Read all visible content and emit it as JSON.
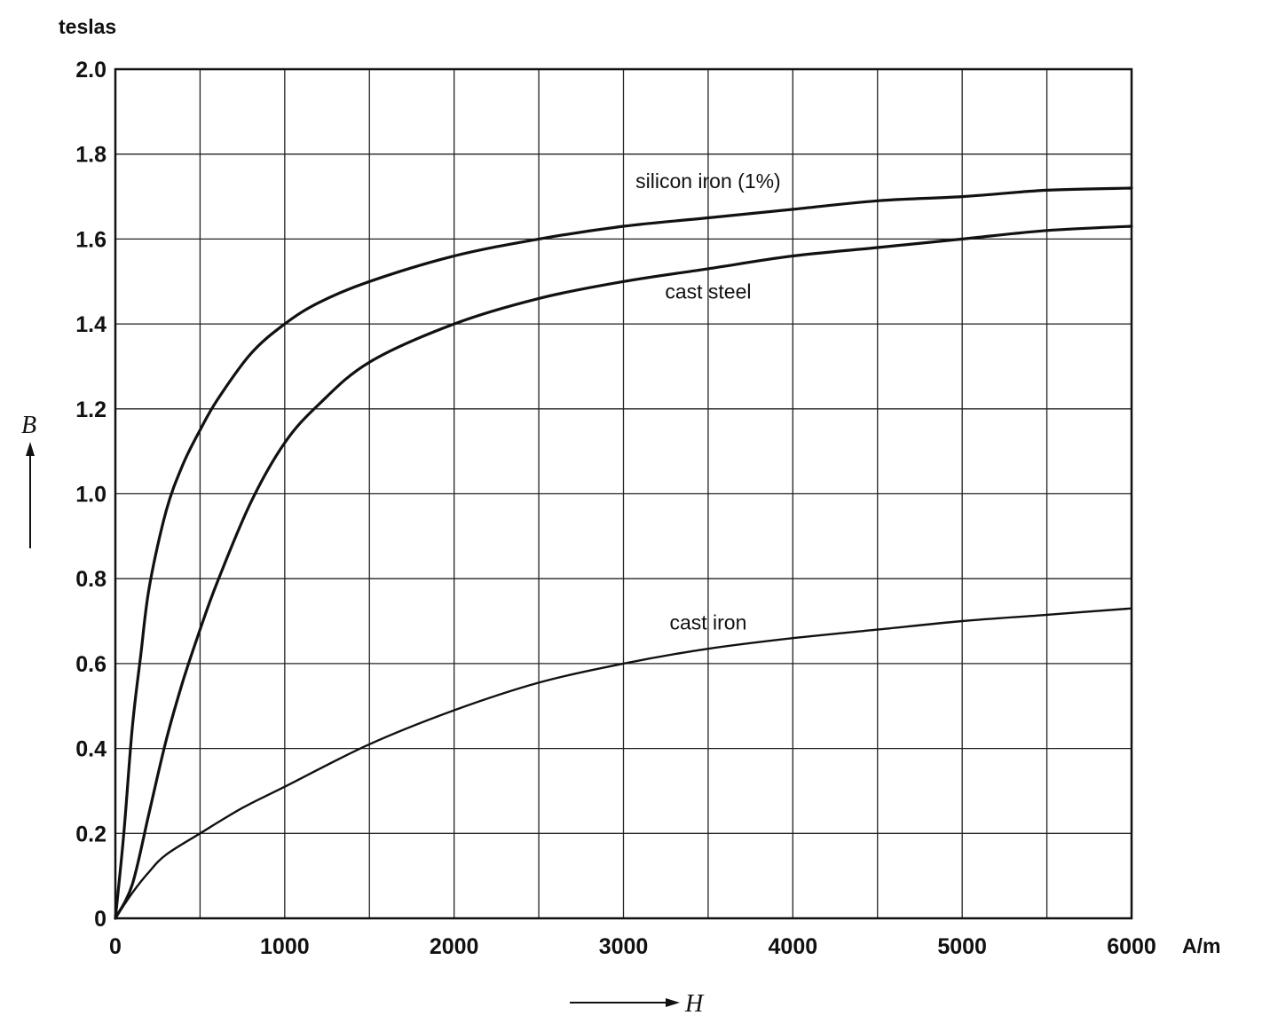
{
  "chart_data": {
    "type": "line",
    "y_unit": "teslas",
    "x_unit": "A/m",
    "x_symbol": "H",
    "y_symbol": "B",
    "xlim": [
      0,
      6000
    ],
    "ylim": [
      0,
      2.0
    ],
    "x_ticks": [
      "0",
      "1000",
      "2000",
      "3000",
      "4000",
      "5000",
      "6000"
    ],
    "y_ticks": [
      "0",
      "0.2",
      "0.4",
      "0.6",
      "0.8",
      "1.0",
      "1.2",
      "1.4",
      "1.6",
      "1.8",
      "2.0"
    ],
    "grid": true,
    "series": [
      {
        "name": "silicon iron (1%)",
        "x": [
          0,
          50,
          100,
          150,
          200,
          300,
          400,
          500,
          600,
          800,
          1000,
          1200,
          1500,
          2000,
          2500,
          3000,
          3500,
          4000,
          4500,
          5000,
          5500,
          6000
        ],
        "y": [
          0,
          0.2,
          0.45,
          0.62,
          0.78,
          0.96,
          1.07,
          1.15,
          1.22,
          1.33,
          1.4,
          1.45,
          1.5,
          1.56,
          1.6,
          1.63,
          1.65,
          1.67,
          1.69,
          1.7,
          1.715,
          1.72
        ]
      },
      {
        "name": "cast steel",
        "x": [
          0,
          100,
          200,
          300,
          400,
          500,
          600,
          800,
          1000,
          1200,
          1500,
          2000,
          2500,
          3000,
          3500,
          4000,
          4500,
          5000,
          5500,
          6000
        ],
        "y": [
          0,
          0.08,
          0.25,
          0.42,
          0.56,
          0.68,
          0.79,
          0.98,
          1.12,
          1.21,
          1.31,
          1.4,
          1.46,
          1.5,
          1.53,
          1.56,
          1.58,
          1.6,
          1.62,
          1.63
        ]
      },
      {
        "name": "cast iron",
        "x": [
          0,
          100,
          200,
          300,
          500,
          750,
          1000,
          1500,
          2000,
          2500,
          3000,
          3500,
          4000,
          4500,
          5000,
          5500,
          6000
        ],
        "y": [
          0,
          0.06,
          0.11,
          0.15,
          0.2,
          0.26,
          0.31,
          0.41,
          0.49,
          0.555,
          0.6,
          0.635,
          0.66,
          0.68,
          0.7,
          0.715,
          0.73
        ]
      }
    ],
    "labels": [
      {
        "text": "silicon iron (1%)",
        "x": 3500,
        "y": 1.72
      },
      {
        "text": "cast steel",
        "x": 3500,
        "y": 1.46
      },
      {
        "text": "cast iron",
        "x": 3500,
        "y": 0.68
      }
    ]
  }
}
